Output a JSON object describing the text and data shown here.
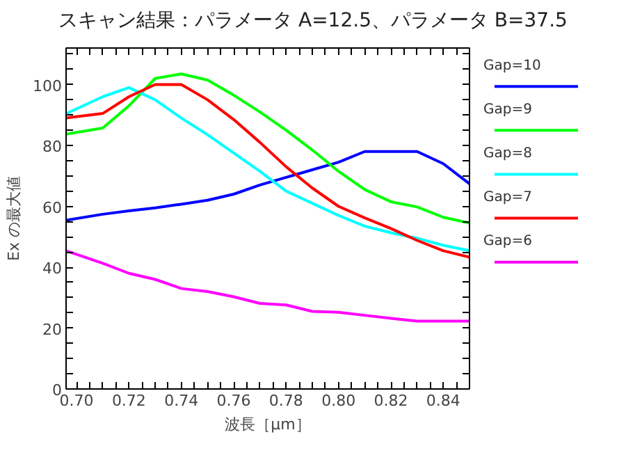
{
  "chart_data": {
    "type": "line",
    "title": "スキャン結果：パラメータ A=12.5、パラメータ B=37.5",
    "xlabel": "波長［μm］",
    "ylabel": "Ex の最大値",
    "x": [
      0.696,
      0.71,
      0.72,
      0.73,
      0.74,
      0.75,
      0.76,
      0.77,
      0.78,
      0.79,
      0.8,
      0.81,
      0.82,
      0.83,
      0.84,
      0.85
    ],
    "series": [
      {
        "name": "Gap=10",
        "color": "#0000ff",
        "values": [
          55.4,
          57.4,
          58.5,
          59.5,
          60.7,
          62,
          64,
          67,
          69.5,
          72,
          74.5,
          78,
          78,
          78,
          74,
          67.4
        ]
      },
      {
        "name": "Gap=9",
        "color": "#00ff00",
        "values": [
          83.7,
          85.7,
          93,
          102,
          103.5,
          101.5,
          96.5,
          91,
          85,
          78.5,
          71.5,
          65.5,
          61.5,
          59.8,
          56.4,
          54.5
        ]
      },
      {
        "name": "Gap=8",
        "color": "#00ffff",
        "values": [
          90.4,
          96,
          99,
          95,
          89,
          83.5,
          77.5,
          71.5,
          65,
          61,
          57,
          53.5,
          51.3,
          49.5,
          47.2,
          45.4
        ]
      },
      {
        "name": "Gap=7",
        "color": "#ff0000",
        "values": [
          89,
          90.5,
          96,
          100,
          100,
          95,
          88.5,
          81,
          73,
          66,
          60,
          56.2,
          52.7,
          48.8,
          45.4,
          43.3
        ]
      },
      {
        "name": "Gap=6",
        "color": "#ff00ff",
        "values": [
          45.4,
          41.3,
          38,
          36,
          33,
          32,
          30.3,
          28.1,
          27.6,
          25.5,
          25.2,
          24.2,
          23.2,
          22.3,
          22.3,
          22.3
        ]
      }
    ],
    "xlim": [
      0.696,
      0.85
    ],
    "ylim": [
      0,
      112
    ],
    "xticks": [
      {
        "value": 0.7,
        "label": "0.70"
      },
      {
        "value": 0.705,
        "label": null
      },
      {
        "value": 0.71,
        "label": null
      },
      {
        "value": 0.715,
        "label": null
      },
      {
        "value": 0.72,
        "label": "0.72"
      },
      {
        "value": 0.725,
        "label": null
      },
      {
        "value": 0.73,
        "label": null
      },
      {
        "value": 0.735,
        "label": null
      },
      {
        "value": 0.74,
        "label": "0.74"
      },
      {
        "value": 0.745,
        "label": null
      },
      {
        "value": 0.75,
        "label": null
      },
      {
        "value": 0.755,
        "label": null
      },
      {
        "value": 0.76,
        "label": "0.76"
      },
      {
        "value": 0.765,
        "label": null
      },
      {
        "value": 0.77,
        "label": null
      },
      {
        "value": 0.775,
        "label": null
      },
      {
        "value": 0.78,
        "label": "0.78"
      },
      {
        "value": 0.785,
        "label": null
      },
      {
        "value": 0.79,
        "label": null
      },
      {
        "value": 0.795,
        "label": null
      },
      {
        "value": 0.8,
        "label": "0.80"
      },
      {
        "value": 0.805,
        "label": null
      },
      {
        "value": 0.81,
        "label": null
      },
      {
        "value": 0.815,
        "label": null
      },
      {
        "value": 0.82,
        "label": "0.82"
      },
      {
        "value": 0.825,
        "label": null
      },
      {
        "value": 0.83,
        "label": null
      },
      {
        "value": 0.835,
        "label": null
      },
      {
        "value": 0.84,
        "label": "0.84"
      },
      {
        "value": 0.845,
        "label": null
      }
    ],
    "yticks": [
      0,
      {
        "value": 5,
        "label": null
      },
      {
        "value": 10,
        "label": null
      },
      {
        "value": 15,
        "label": null
      },
      20,
      {
        "value": 25,
        "label": null
      },
      {
        "value": 30,
        "label": null
      },
      {
        "value": 35,
        "label": null
      },
      40,
      {
        "value": 45,
        "label": null
      },
      {
        "value": 50,
        "label": null
      },
      {
        "value": 55,
        "label": null
      },
      60,
      {
        "value": 65,
        "label": null
      },
      {
        "value": 70,
        "label": null
      },
      {
        "value": 75,
        "label": null
      },
      80,
      {
        "value": 85,
        "label": null
      },
      {
        "value": 90,
        "label": null
      },
      {
        "value": 95,
        "label": null
      },
      100,
      {
        "value": 105,
        "label": null
      },
      {
        "value": 110,
        "label": null
      }
    ],
    "grid": false,
    "legend": "right",
    "marker": "none",
    "line_style": "solid"
  }
}
